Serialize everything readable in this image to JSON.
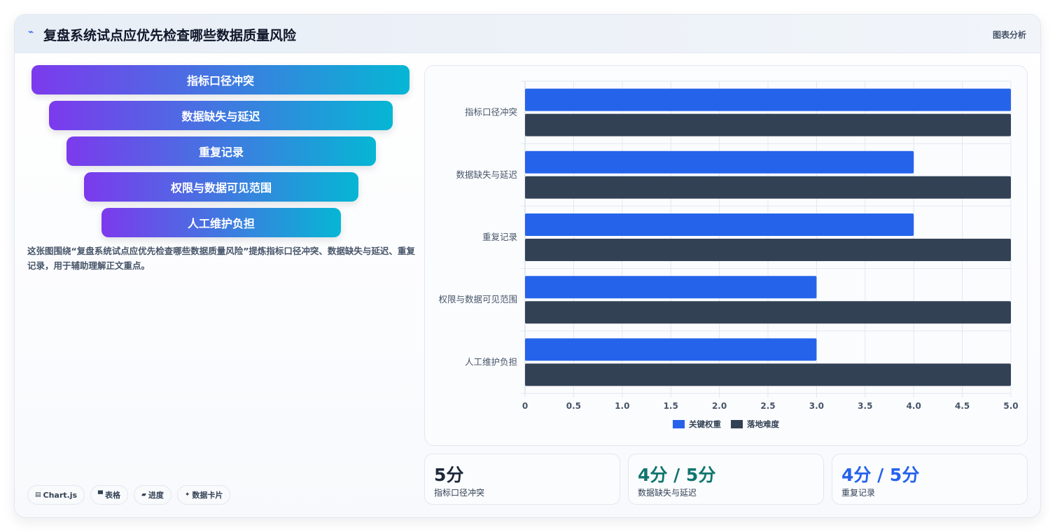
{
  "header": {
    "icon": "chart-line-icon",
    "title": "复盘系统试点应优先检查哪些数据质量风险",
    "tag": "图表分析"
  },
  "funnel": [
    "指标口径冲突",
    "数据缺失与延迟",
    "重复记录",
    "权限与数据可见范围",
    "人工维护负担"
  ],
  "description": "这张图围绕“复盘系统试点应优先检查哪些数据质量风险”提炼指标口径冲突、数据缺失与延迟、重复记录，用于辅助理解正文重点。",
  "chips": [
    {
      "icon": "chart-icon",
      "label": "Chart.js"
    },
    {
      "icon": "table-icon",
      "label": "表格"
    },
    {
      "icon": "progress-icon",
      "label": "进度"
    },
    {
      "icon": "card-icon",
      "label": "数据卡片"
    }
  ],
  "stats": [
    {
      "value": "5分",
      "label": "指标口径冲突",
      "color": "#1e293b"
    },
    {
      "value": "4分 / 5分",
      "label": "数据缺失与延迟",
      "color": "#0f766e"
    },
    {
      "value": "4分 / 5分",
      "label": "重复记录",
      "color": "#2563eb"
    }
  ],
  "chart_data": {
    "type": "bar",
    "orientation": "horizontal",
    "categories": [
      "指标口径冲突",
      "数据缺失与延迟",
      "重复记录",
      "权限与数据可见范围",
      "人工维护负担"
    ],
    "series": [
      {
        "name": "关键权重",
        "values": [
          5,
          4,
          4,
          3,
          3
        ],
        "color": "#2563eb"
      },
      {
        "name": "落地难度",
        "values": [
          5,
          5,
          5,
          5,
          5
        ],
        "color": "#334155"
      }
    ],
    "xlim": [
      0,
      5
    ],
    "xticks": [
      "0",
      "0.5",
      "1.0",
      "1.5",
      "2.0",
      "2.5",
      "3.0",
      "3.5",
      "4.0",
      "4.5",
      "5.0"
    ],
    "grid": true,
    "legend": "bottom"
  }
}
